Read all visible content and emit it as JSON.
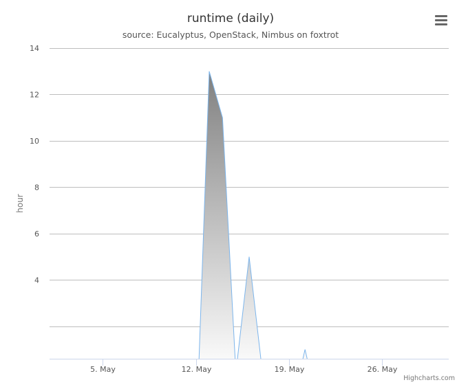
{
  "chart_data": {
    "type": "area",
    "title": "runtime (daily)",
    "subtitle": "source: Eucalyptus, OpenStack, Nimbus on foxtrot",
    "xlabel": "",
    "ylabel": "hour",
    "x_ticks": [
      "5. May",
      "12. May",
      "19. May",
      "26. May"
    ],
    "x_tick_days": [
      5,
      12,
      19,
      26
    ],
    "xlim": [
      1,
      31
    ],
    "y_ticks": [
      4,
      6,
      8,
      10,
      12,
      14
    ],
    "y_gridlines": [
      2,
      4,
      6,
      8,
      10,
      12,
      14
    ],
    "ylim": [
      0.6,
      14
    ],
    "grid": true,
    "legend": "none",
    "series": [
      {
        "color": "#7cb5ec",
        "points": [
          {
            "day": 1,
            "value": 0
          },
          {
            "day": 12.2,
            "value": 0
          },
          {
            "day": 13,
            "value": 13
          },
          {
            "day": 14,
            "value": 11
          },
          {
            "day": 15,
            "value": 0
          },
          {
            "day": 16,
            "value": 5
          },
          {
            "day": 17,
            "value": 0
          },
          {
            "day": 19.8,
            "value": 0
          },
          {
            "day": 20.2,
            "value": 1
          },
          {
            "day": 20.6,
            "value": 0
          },
          {
            "day": 31,
            "value": 0
          }
        ]
      }
    ],
    "credits": "Highcharts.com",
    "menu_icon": "hamburger-menu-icon"
  }
}
